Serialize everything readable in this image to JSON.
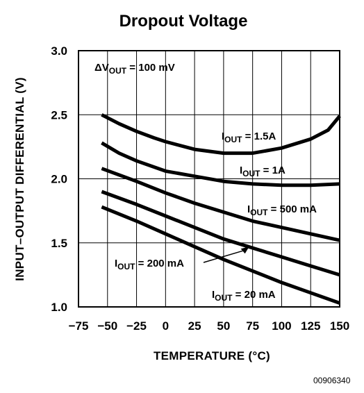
{
  "chart_data": {
    "type": "line",
    "title": "Dropout Voltage",
    "xlabel": "TEMPERATURE (°C)",
    "ylabel": "INPUT–OUTPUT DIFFERENTIAL (V)",
    "xlim": [
      -75,
      150
    ],
    "ylim": [
      1.0,
      3.0
    ],
    "xticks": [
      "−75",
      "−50",
      "−25",
      "0",
      "25",
      "50",
      "75",
      "100",
      "125",
      "150"
    ],
    "xtick_values": [
      -75,
      -50,
      -25,
      0,
      25,
      50,
      75,
      100,
      125,
      150
    ],
    "yticks": [
      "1.0",
      "1.5",
      "2.0",
      "2.5",
      "3.0"
    ],
    "ytick_values": [
      1.0,
      1.5,
      2.0,
      2.5,
      3.0
    ],
    "grid": true,
    "condition": {
      "symbol": "ΔV",
      "sub": "OUT",
      "text": " = 100 mV"
    },
    "series": [
      {
        "name": "I_OUT = 1.5A",
        "x": [
          -55,
          -40,
          -25,
          -10,
          0,
          25,
          50,
          75,
          100,
          125,
          140,
          150
        ],
        "y": [
          2.5,
          2.43,
          2.37,
          2.32,
          2.29,
          2.23,
          2.2,
          2.2,
          2.24,
          2.31,
          2.38,
          2.49
        ]
      },
      {
        "name": "I_OUT = 1A",
        "x": [
          -55,
          -40,
          -25,
          0,
          25,
          50,
          75,
          100,
          125,
          150
        ],
        "y": [
          2.28,
          2.2,
          2.14,
          2.06,
          2.02,
          1.98,
          1.96,
          1.95,
          1.95,
          1.96
        ]
      },
      {
        "name": "I_OUT = 500 mA",
        "x": [
          -55,
          -25,
          0,
          25,
          50,
          75,
          100,
          125,
          150
        ],
        "y": [
          2.08,
          1.98,
          1.89,
          1.81,
          1.74,
          1.67,
          1.62,
          1.57,
          1.52
        ]
      },
      {
        "name": "I_OUT = 200 mA",
        "x": [
          -55,
          -25,
          0,
          25,
          50,
          75,
          100,
          125,
          150
        ],
        "y": [
          1.9,
          1.8,
          1.71,
          1.62,
          1.53,
          1.46,
          1.39,
          1.32,
          1.25
        ]
      },
      {
        "name": "I_OUT = 20 mA",
        "x": [
          -55,
          -25,
          0,
          25,
          50,
          75,
          100,
          125,
          150
        ],
        "y": [
          1.78,
          1.67,
          1.57,
          1.47,
          1.37,
          1.28,
          1.19,
          1.11,
          1.03
        ]
      }
    ],
    "labels": [
      {
        "series": "I_OUT = 1.5A",
        "pre": "I",
        "sub": "OUT",
        "post": " = 1.5A"
      },
      {
        "series": "I_OUT = 1A",
        "pre": "I",
        "sub": "OUT",
        "post": " = 1A"
      },
      {
        "series": "I_OUT = 500 mA",
        "pre": "I",
        "sub": "OUT",
        "post": " = 500 mA"
      },
      {
        "series": "I_OUT = 200 mA",
        "pre": "I",
        "sub": "OUT",
        "post": " = 200 mA"
      },
      {
        "series": "I_OUT = 20 mA",
        "pre": "I",
        "sub": "OUT",
        "post": " = 20 mA"
      }
    ]
  },
  "figure_id": "00906340"
}
